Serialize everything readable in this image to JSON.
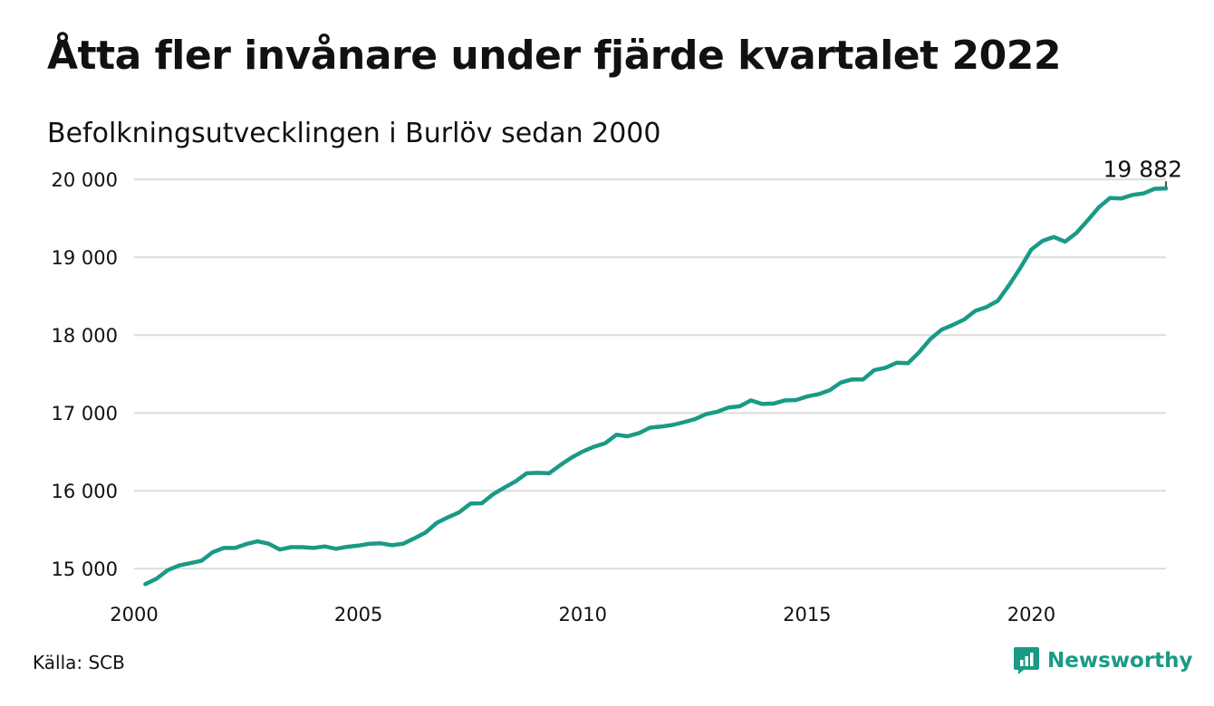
{
  "title": "Åtta fler invånare under fjärde kvartalet 2022",
  "subtitle": "Befolkningsutvecklingen i Burlöv sedan 2000",
  "source": "Källa: SCB",
  "brand": {
    "name": "Newsworthy",
    "icon": "newsworthy-logo-icon"
  },
  "colors": {
    "line": "#1a9a86",
    "grid": "#dcdcdc",
    "text": "#111111",
    "brand": "#1a9a86"
  },
  "chart_data": {
    "type": "line",
    "title": "",
    "xlabel": "",
    "ylabel": "",
    "xlim": [
      2000,
      2023
    ],
    "ylim": [
      14700,
      20200
    ],
    "grid": true,
    "x_ticks": [
      2000,
      2005,
      2010,
      2015,
      2020
    ],
    "x_tick_labels": [
      "2000",
      "2005",
      "2010",
      "2015",
      "2020"
    ],
    "y_ticks": [
      15000,
      16000,
      17000,
      18000,
      19000,
      20000
    ],
    "y_tick_labels": [
      "15 000",
      "16 000",
      "17 000",
      "18 000",
      "19 000",
      "20 000"
    ],
    "end_label": "19 882",
    "series": [
      {
        "name": "",
        "x": [
          2000.25,
          2000.5,
          2000.75,
          2001.0,
          2001.25,
          2001.5,
          2001.75,
          2002.0,
          2002.25,
          2002.5,
          2002.75,
          2003.0,
          2003.25,
          2003.5,
          2003.75,
          2004.0,
          2004.25,
          2004.5,
          2004.75,
          2005.0,
          2005.25,
          2005.5,
          2005.75,
          2006.0,
          2006.25,
          2006.5,
          2006.75,
          2007.0,
          2007.25,
          2007.5,
          2007.75,
          2008.0,
          2008.25,
          2008.5,
          2008.75,
          2009.0,
          2009.25,
          2009.5,
          2009.75,
          2010.0,
          2010.25,
          2010.5,
          2010.75,
          2011.0,
          2011.25,
          2011.5,
          2011.75,
          2012.0,
          2012.25,
          2012.5,
          2012.75,
          2013.0,
          2013.25,
          2013.5,
          2013.75,
          2014.0,
          2014.25,
          2014.5,
          2014.75,
          2015.0,
          2015.25,
          2015.5,
          2015.75,
          2016.0,
          2016.25,
          2016.5,
          2016.75,
          2017.0,
          2017.25,
          2017.5,
          2017.75,
          2018.0,
          2018.25,
          2018.5,
          2018.75,
          2019.0,
          2019.25,
          2019.5,
          2019.75,
          2020.0,
          2020.25,
          2020.5,
          2020.75,
          2021.0,
          2021.25,
          2021.5,
          2021.75,
          2022.0,
          2022.25,
          2022.5,
          2022.75,
          2023.0
        ],
        "values": [
          14800,
          14870,
          14980,
          15040,
          15070,
          15100,
          15210,
          15265,
          15265,
          15315,
          15350,
          15320,
          15245,
          15275,
          15275,
          15265,
          15285,
          15255,
          15280,
          15295,
          15320,
          15325,
          15300,
          15320,
          15390,
          15465,
          15590,
          15660,
          15725,
          15835,
          15840,
          15955,
          16040,
          16120,
          16225,
          16230,
          16225,
          16330,
          16425,
          16505,
          16565,
          16610,
          16720,
          16700,
          16740,
          16810,
          16825,
          16845,
          16880,
          16920,
          16985,
          17015,
          17070,
          17085,
          17160,
          17115,
          17120,
          17160,
          17165,
          17210,
          17240,
          17290,
          17390,
          17430,
          17430,
          17550,
          17580,
          17645,
          17640,
          17780,
          17950,
          18070,
          18130,
          18200,
          18310,
          18360,
          18440,
          18640,
          18860,
          19100,
          19210,
          19260,
          19200,
          19310,
          19470,
          19640,
          19760,
          19755,
          19800,
          19820,
          19880,
          19882
        ]
      }
    ]
  }
}
